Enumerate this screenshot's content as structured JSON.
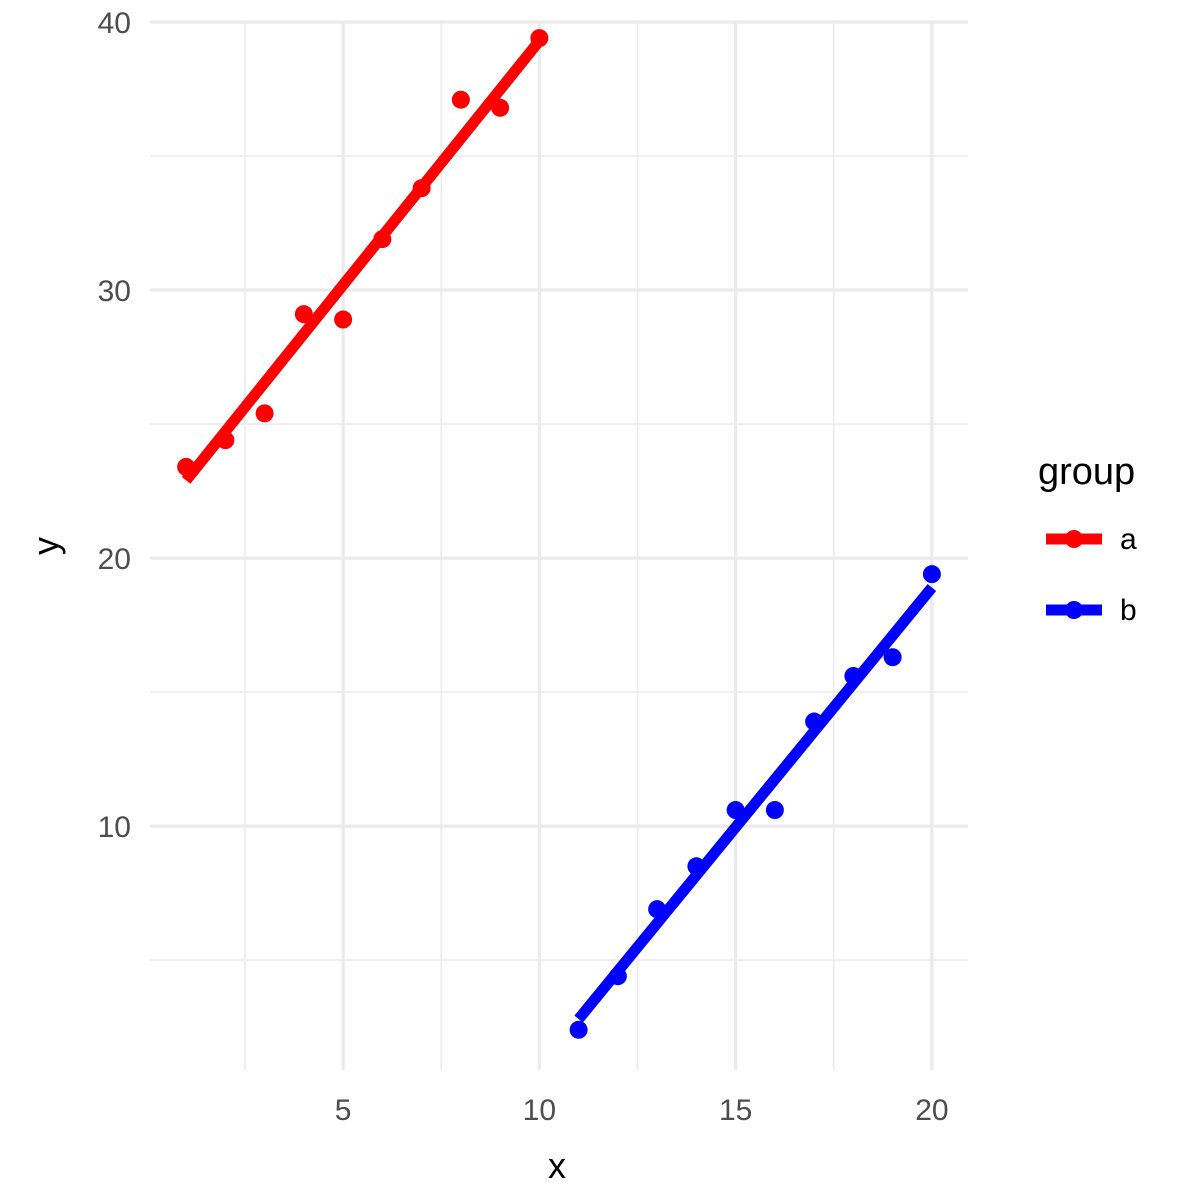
{
  "chart_data": {
    "type": "scatter",
    "xlabel": "x",
    "ylabel": "y",
    "xlim": [
      0.08,
      20.92
    ],
    "ylim": [
      0.9,
      40.0
    ],
    "x_ticks": [
      5,
      10,
      15,
      20
    ],
    "x_tick_labels": [
      "5",
      "10",
      "15",
      "20"
    ],
    "x_minor_ticks": [
      2.5,
      7.5,
      12.5,
      17.5
    ],
    "y_ticks": [
      10,
      20,
      30,
      40
    ],
    "y_tick_labels": [
      "10",
      "20",
      "30",
      "40"
    ],
    "y_minor_ticks": [
      5,
      15,
      25,
      35
    ],
    "grid": true,
    "legend": {
      "title": "group",
      "placement": "right"
    },
    "series": [
      {
        "name": "a",
        "color": "#ff0000",
        "x": [
          1,
          2,
          3,
          4,
          5,
          6,
          7,
          8,
          9,
          10
        ],
        "y": [
          23.4,
          24.4,
          25.4,
          29.1,
          28.9,
          31.9,
          33.8,
          37.1,
          36.8,
          39.4
        ],
        "fit": {
          "x": [
            1,
            10
          ],
          "y": [
            22.9,
            39.3
          ]
        }
      },
      {
        "name": "b",
        "color": "#0000ff",
        "x": [
          11,
          12,
          13,
          14,
          15,
          16,
          17,
          18,
          19,
          20
        ],
        "y": [
          2.4,
          4.4,
          6.9,
          8.5,
          10.6,
          10.6,
          13.9,
          15.6,
          16.3,
          19.4
        ],
        "fit": {
          "x": [
            11,
            20
          ],
          "y": [
            2.8,
            18.9
          ]
        }
      }
    ]
  }
}
